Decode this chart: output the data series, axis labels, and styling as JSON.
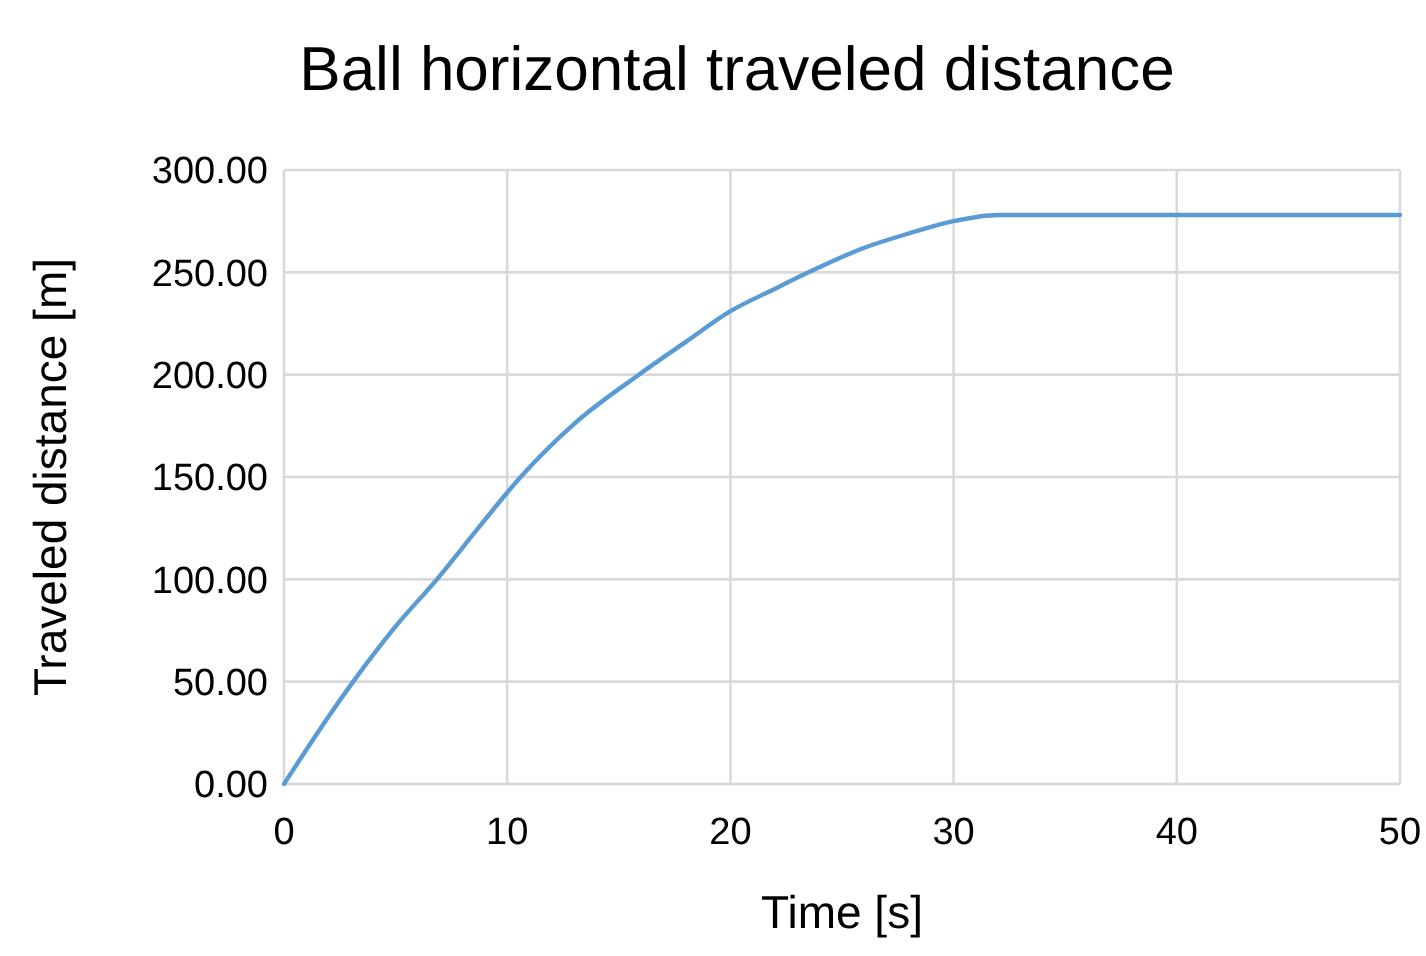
{
  "chart_data": {
    "type": "line",
    "title": "Ball horizontal traveled distance",
    "xlabel": "Time [s]",
    "ylabel": "Traveled distance [m]",
    "series": [
      {
        "color": "#5b9bd5",
        "x": [
          0,
          2,
          3.1,
          5,
          6.85,
          8.7,
          10.6,
          13,
          15.9,
          18,
          20,
          22,
          23.5,
          26,
          28,
          30,
          32,
          33,
          50
        ],
        "values": [
          0,
          33,
          50,
          77,
          100,
          125,
          150,
          176,
          200,
          216,
          231,
          242,
          250,
          262,
          269,
          275,
          278,
          278,
          278
        ]
      }
    ],
    "xlim": [
      0,
      50
    ],
    "xticks": [
      0,
      10,
      20,
      30,
      40,
      50
    ],
    "ylim": [
      0,
      300
    ],
    "yticks": [
      {
        "value": 0,
        "label": "0.00"
      },
      {
        "value": 50,
        "label": "50.00"
      },
      {
        "value": 100,
        "label": "100.00"
      },
      {
        "value": 150,
        "label": "150.00"
      },
      {
        "value": 200,
        "label": "200.00"
      },
      {
        "value": 250,
        "label": "250.00"
      },
      {
        "value": 300,
        "label": "300.00"
      }
    ],
    "grid": true,
    "marker": "none",
    "line_style": "solid"
  }
}
